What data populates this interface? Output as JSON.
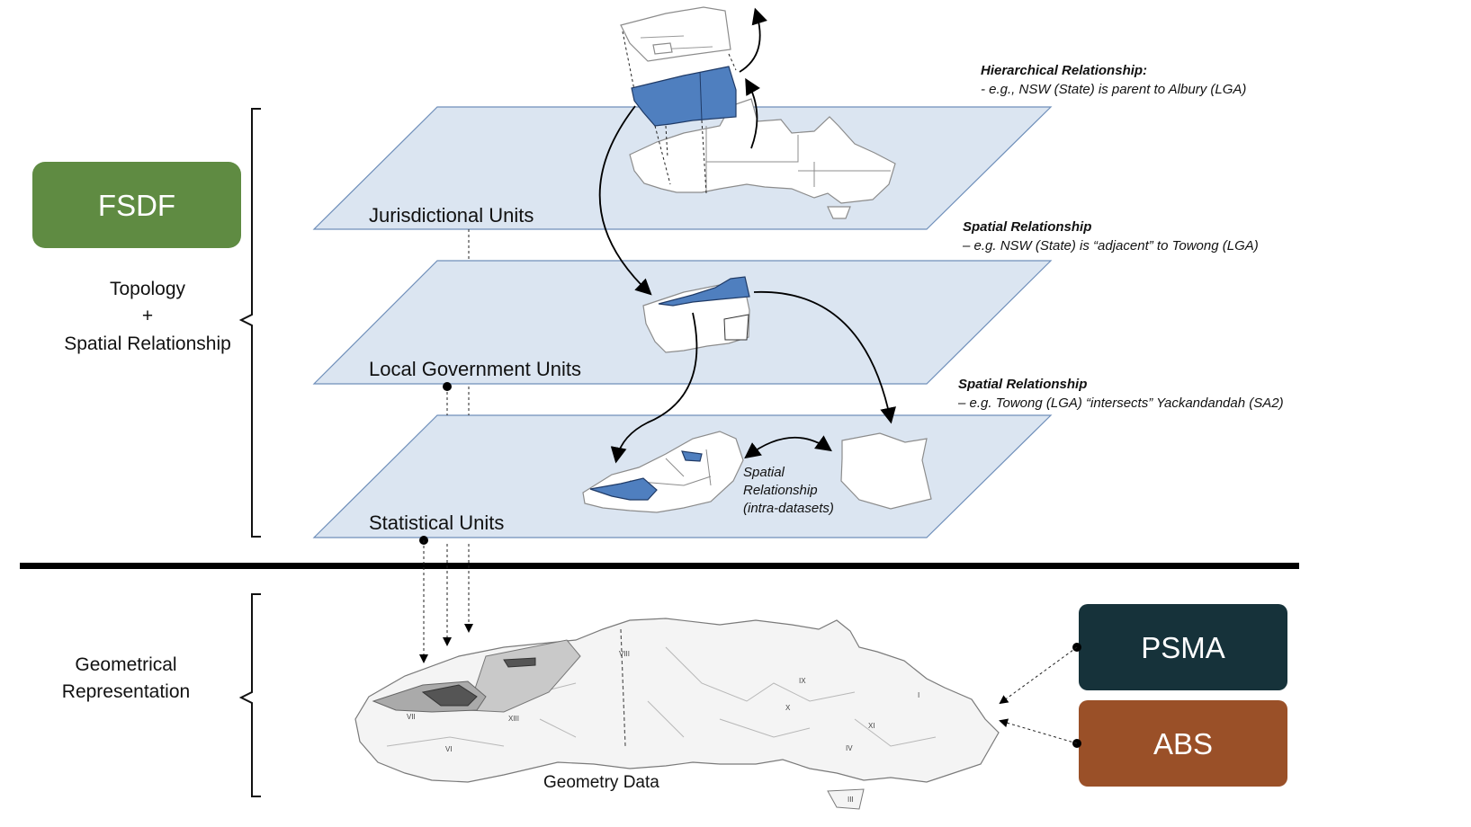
{
  "left": {
    "fsdf_label": "FSDF",
    "topology_lines": [
      "Topology",
      "+",
      "Spatial Relationship"
    ],
    "geometrical_lines": [
      "Geometrical",
      "Representation"
    ]
  },
  "layers": {
    "jurisdictional": "Jurisdictional Units",
    "local_government": "Local Government Units",
    "statistical": "Statistical Units"
  },
  "relationships": {
    "hierarchical": {
      "title": "Hierarchical  Relationship:",
      "body": "- e.g.,  NSW (State) is parent to Albury (LGA)"
    },
    "spatial_1": {
      "title": "Spatial  Relationship",
      "body": "– e.g.  NSW (State) is “adjacent” to Towong  (LGA)"
    },
    "spatial_2": {
      "title": "Spatial  Relationship",
      "body": "– e.g.  Towong  (LGA) “intersects” Yackandandah  (SA2)"
    },
    "intra": [
      "Spatial",
      "Relationship",
      "(intra-datasets)"
    ]
  },
  "bottom": {
    "geometry_label": "Geometry Data",
    "map_regions": [
      "VIII",
      "VII",
      "XIII",
      "VI",
      "IX",
      "X",
      "XI",
      "IV",
      "I",
      "III"
    ]
  },
  "providers": {
    "psma": "PSMA",
    "abs": "ABS"
  },
  "colors": {
    "fsdf": "#5f8b42",
    "psma": "#16323a",
    "abs": "#9a5028",
    "plane": "#dbe5f1",
    "highlight": "#4f7fbf"
  }
}
